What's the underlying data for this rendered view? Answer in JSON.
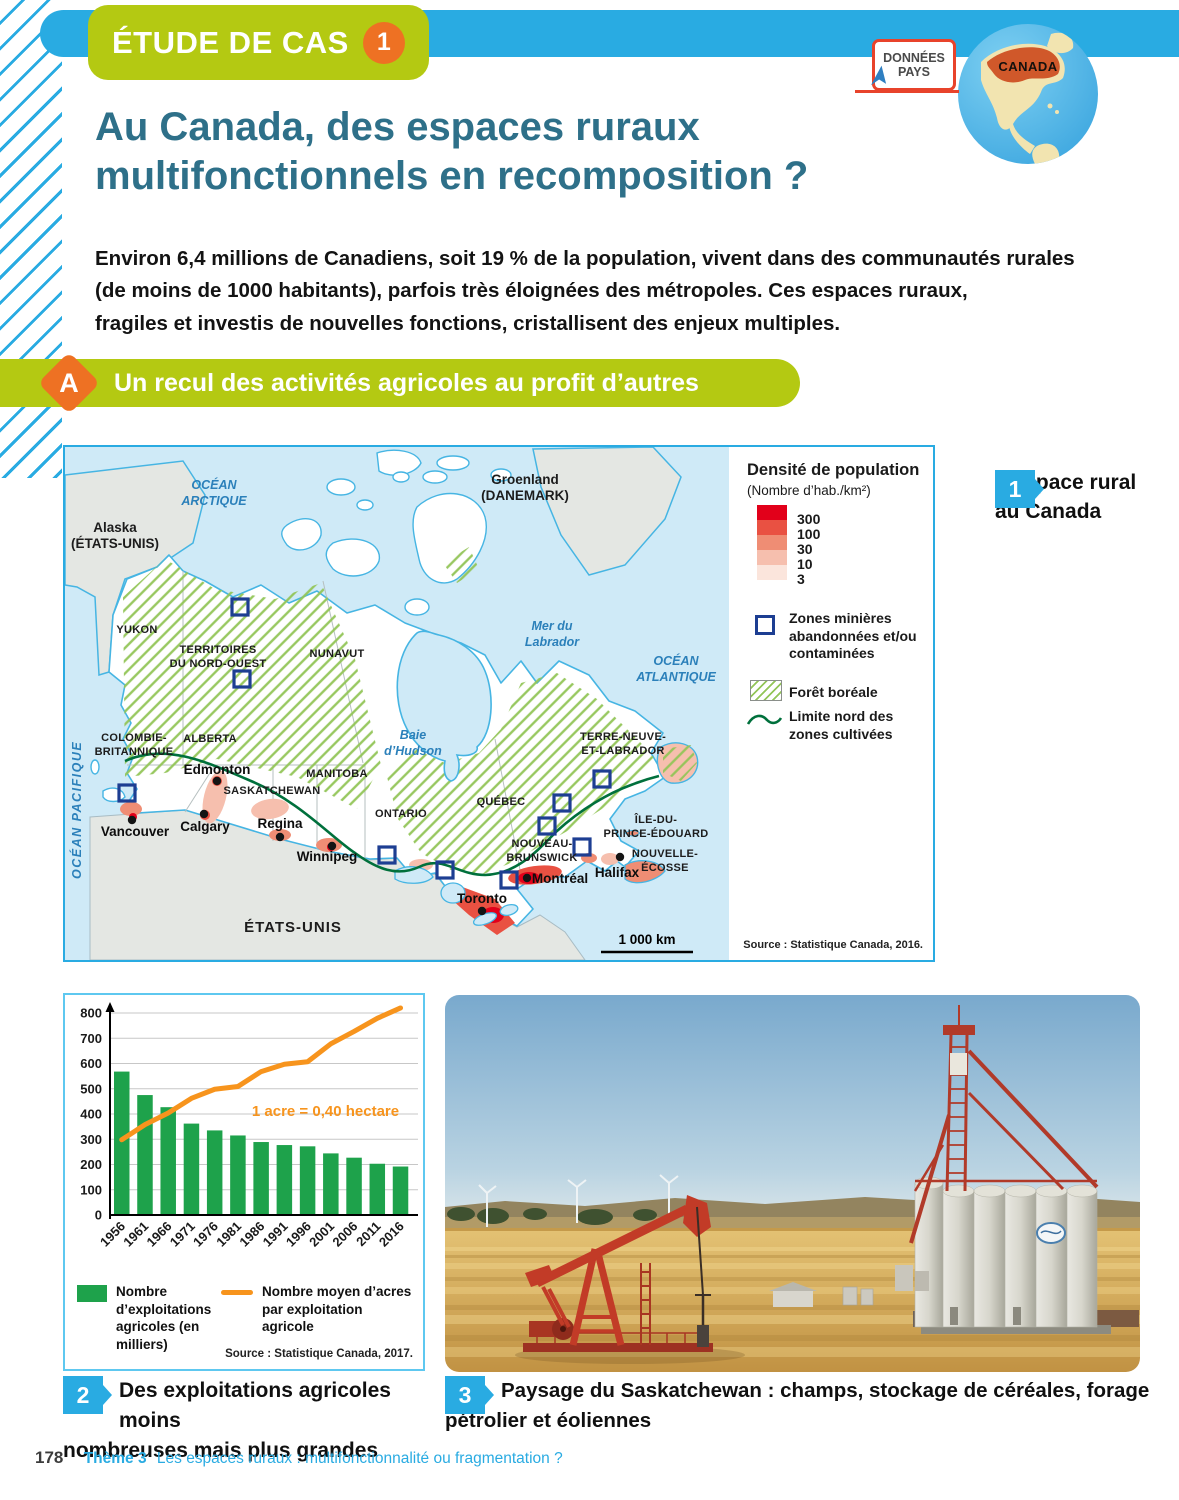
{
  "header": {
    "badge_label": "ÉTUDE DE CAS",
    "badge_number": "1",
    "donnees_line1": "DONNÉES",
    "donnees_line2": "PAYS",
    "globe_label": "CANADA"
  },
  "title": {
    "line1": "Au Canada, des espaces ruraux",
    "line2": "multifonctionnels en recomposition ?"
  },
  "intro_lines": [
    "Environ 6,4 millions de Canadiens, soit 19 % de la population, vivent dans des communautés rurales",
    "(de moins de 1000 habitants), parfois très éloignées des métropoles. Ces espaces ruraux,",
    "fragiles et investis de nouvelles fonctions, cristallisent des enjeux multiples."
  ],
  "section_a": {
    "letter": "A",
    "label": "Un recul des activités agricoles au profit d’autres fonctions ?"
  },
  "map": {
    "legend_title": "Densité de population",
    "legend_subtitle": "(Nombre d’hab./km²)",
    "density_values": [
      "300",
      "100",
      "30",
      "10",
      "3"
    ],
    "density_colors": [
      "#e2001a",
      "#e95142",
      "#ef8d74",
      "#f6bfae",
      "#fbe5dc"
    ],
    "legend_mining": "Zones minières abandonnées et/ou contaminées",
    "legend_forest": "Forêt boréale",
    "legend_limit": "Limite nord des zones cultivées",
    "scale_label": "1 000 km",
    "source": "Source : Statistique Canada, 2016.",
    "waters": [
      "OCÉAN",
      "ARCTIQUE",
      "Mer du",
      "Labrador",
      "OCÉAN",
      "ATLANTIQUE",
      "Baie",
      "d’Hudson",
      "OCÉAN PACIFIQUE"
    ],
    "foreign": [
      "Alaska",
      "(ÉTATS-UNIS)",
      "Groenland",
      "(DANEMARK)",
      "ÉTATS-UNIS"
    ],
    "provinces": [
      "YUKON",
      "TERRITOIRES",
      "DU NORD-OUEST",
      "NUNAVUT",
      "COLOMBIE-",
      "BRITANNIQUE",
      "ALBERTA",
      "SASKATCHEWAN",
      "MANITOBA",
      "ONTARIO",
      "QUÉBEC",
      "TERRE-NEUVE-",
      "ET-LABRADOR",
      "ÎLE-DU-",
      "PRINCE-ÉDOUARD",
      "NOUVEAU-",
      "BRUNSWICK",
      "NOUVELLE-",
      "ÉCOSSE"
    ],
    "cities": [
      "Edmonton",
      "Calgary",
      "Vancouver",
      "Regina",
      "Winnipeg",
      "Toronto",
      "Montréal",
      "Halifax"
    ]
  },
  "caption1": {
    "number": "1",
    "line1": "L’espace rural",
    "line2": "au Canada"
  },
  "chart_data": {
    "type": "bar+line",
    "categories": [
      "1956",
      "1961",
      "1966",
      "1971",
      "1976",
      "1981",
      "1986",
      "1991",
      "1996",
      "2001",
      "2006",
      "2011",
      "2016"
    ],
    "series": [
      {
        "name": "Nombre d’exploitations agricoles (en milliers)",
        "type": "bar",
        "color": "#1ea24b",
        "values": [
          568,
          475,
          427,
          362,
          335,
          315,
          289,
          277,
          272,
          244,
          227,
          203,
          192
        ]
      },
      {
        "name": "Nombre moyen d’acres par exploitation agricole",
        "type": "line",
        "color": "#f7941d",
        "values": [
          298,
          358,
          404,
          462,
          498,
          509,
          568,
          597,
          607,
          678,
          727,
          779,
          820
        ]
      }
    ],
    "ylim": [
      0,
      800
    ],
    "ytick": 100,
    "grid": true,
    "annotation": "1 acre = 0,40 hectare",
    "source": "Source : Statistique Canada, 2017."
  },
  "caption2": {
    "number": "2",
    "line1": "Des exploitations agricoles moins",
    "line2": "nombreuses mais plus grandes"
  },
  "caption3": {
    "number": "3",
    "line1": "Paysage du Saskatchewan : champs, stockage de céréales, forage",
    "line2": "pétrolier et éoliennes"
  },
  "footer": {
    "page_number": "178",
    "theme_label": "Thème 3",
    "theme_title": "Les espaces ruraux : multifonctionnalité ou fragmentation ?"
  },
  "colors": {
    "accent_blue": "#29abe2",
    "accent_green": "#b4c912",
    "accent_orange": "#ee7123",
    "donnees_border": "#e8432b",
    "title_teal": "#2e7089",
    "bar_green": "#1ea24b",
    "line_orange": "#f7941d",
    "mining_navy": "#1d3e92",
    "forest_green": "#93c558",
    "limit_green": "#00703c",
    "ocean": "#cfeaf7"
  }
}
